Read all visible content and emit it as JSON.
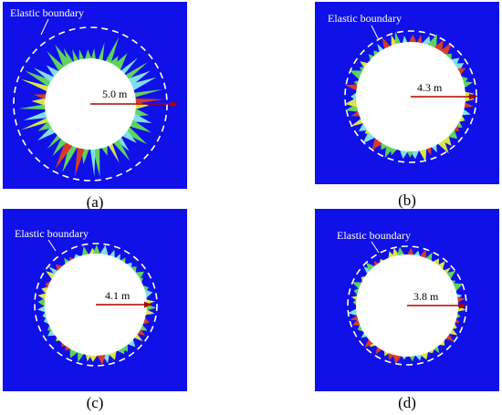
{
  "colors": {
    "background": "#1010e8",
    "tunnel": "#ffffff",
    "boundary": "#ffffff",
    "radius_line": "#b00000",
    "label_text": "#ffffff",
    "plastic_green": "#5fd35f",
    "plastic_yellow": "#d8e64a",
    "plastic_cyan": "#7fe0e8",
    "plastic_red": "#d83c28"
  },
  "boundary_label": "Elastic boundary",
  "panels": [
    {
      "id": "a",
      "caption": "(a)",
      "radius_label": "5.0 m"
    },
    {
      "id": "b",
      "caption": "(b)",
      "radius_label": "4.3 m"
    },
    {
      "id": "c",
      "caption": "(c)",
      "radius_label": "4.1 m"
    },
    {
      "id": "d",
      "caption": "(d)",
      "radius_label": "3.8 m"
    }
  ]
}
